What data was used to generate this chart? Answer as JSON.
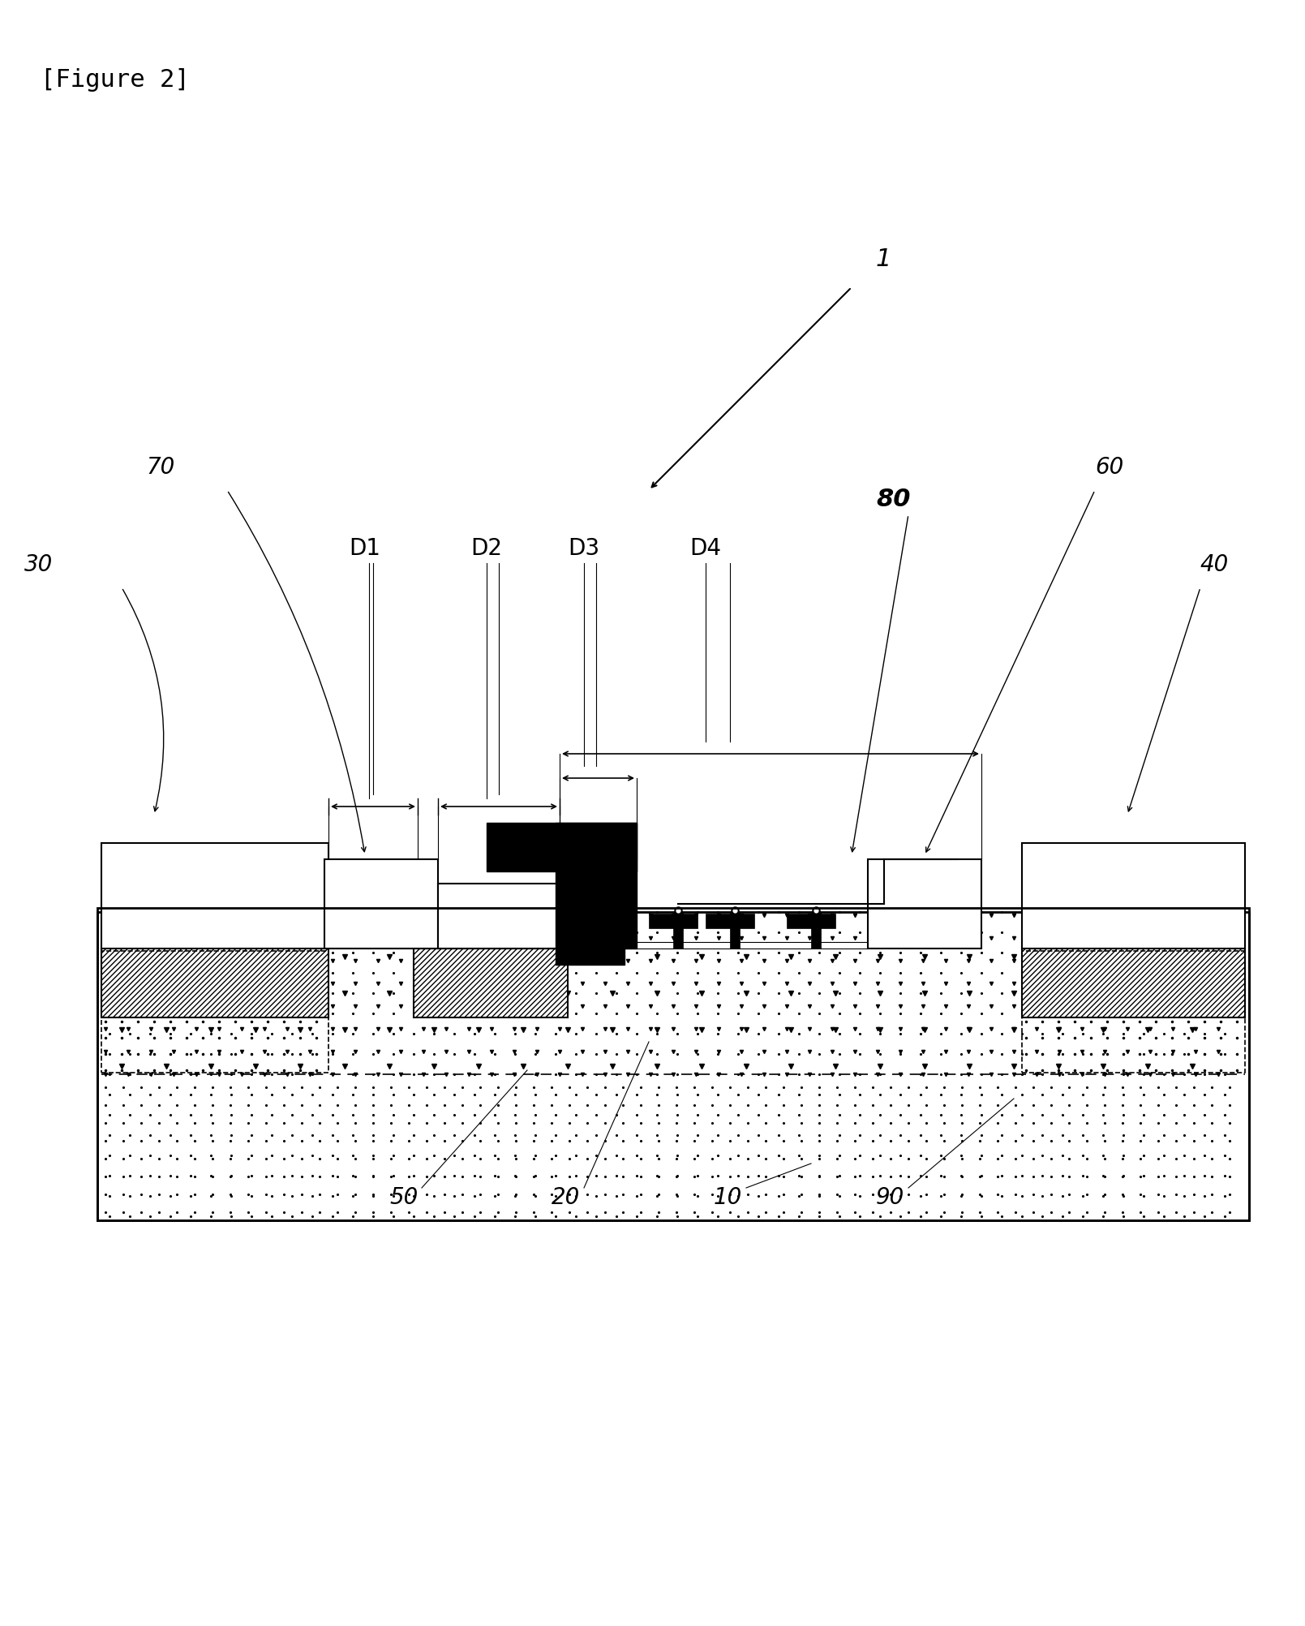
{
  "title": "[Figure 2]",
  "bg_color": "#ffffff",
  "fig_width": 16.09,
  "fig_height": 20.04,
  "labels": {
    "figure": "[Figure 2]",
    "ref1": "1",
    "ref10": "10",
    "ref20": "20",
    "ref30": "30",
    "ref40": "40",
    "ref50": "50",
    "ref60": "60",
    "ref70": "70",
    "ref80": "80",
    "ref90": "90",
    "D1": "D1",
    "D2": "D2",
    "D3": "D3",
    "D4": "D4"
  }
}
